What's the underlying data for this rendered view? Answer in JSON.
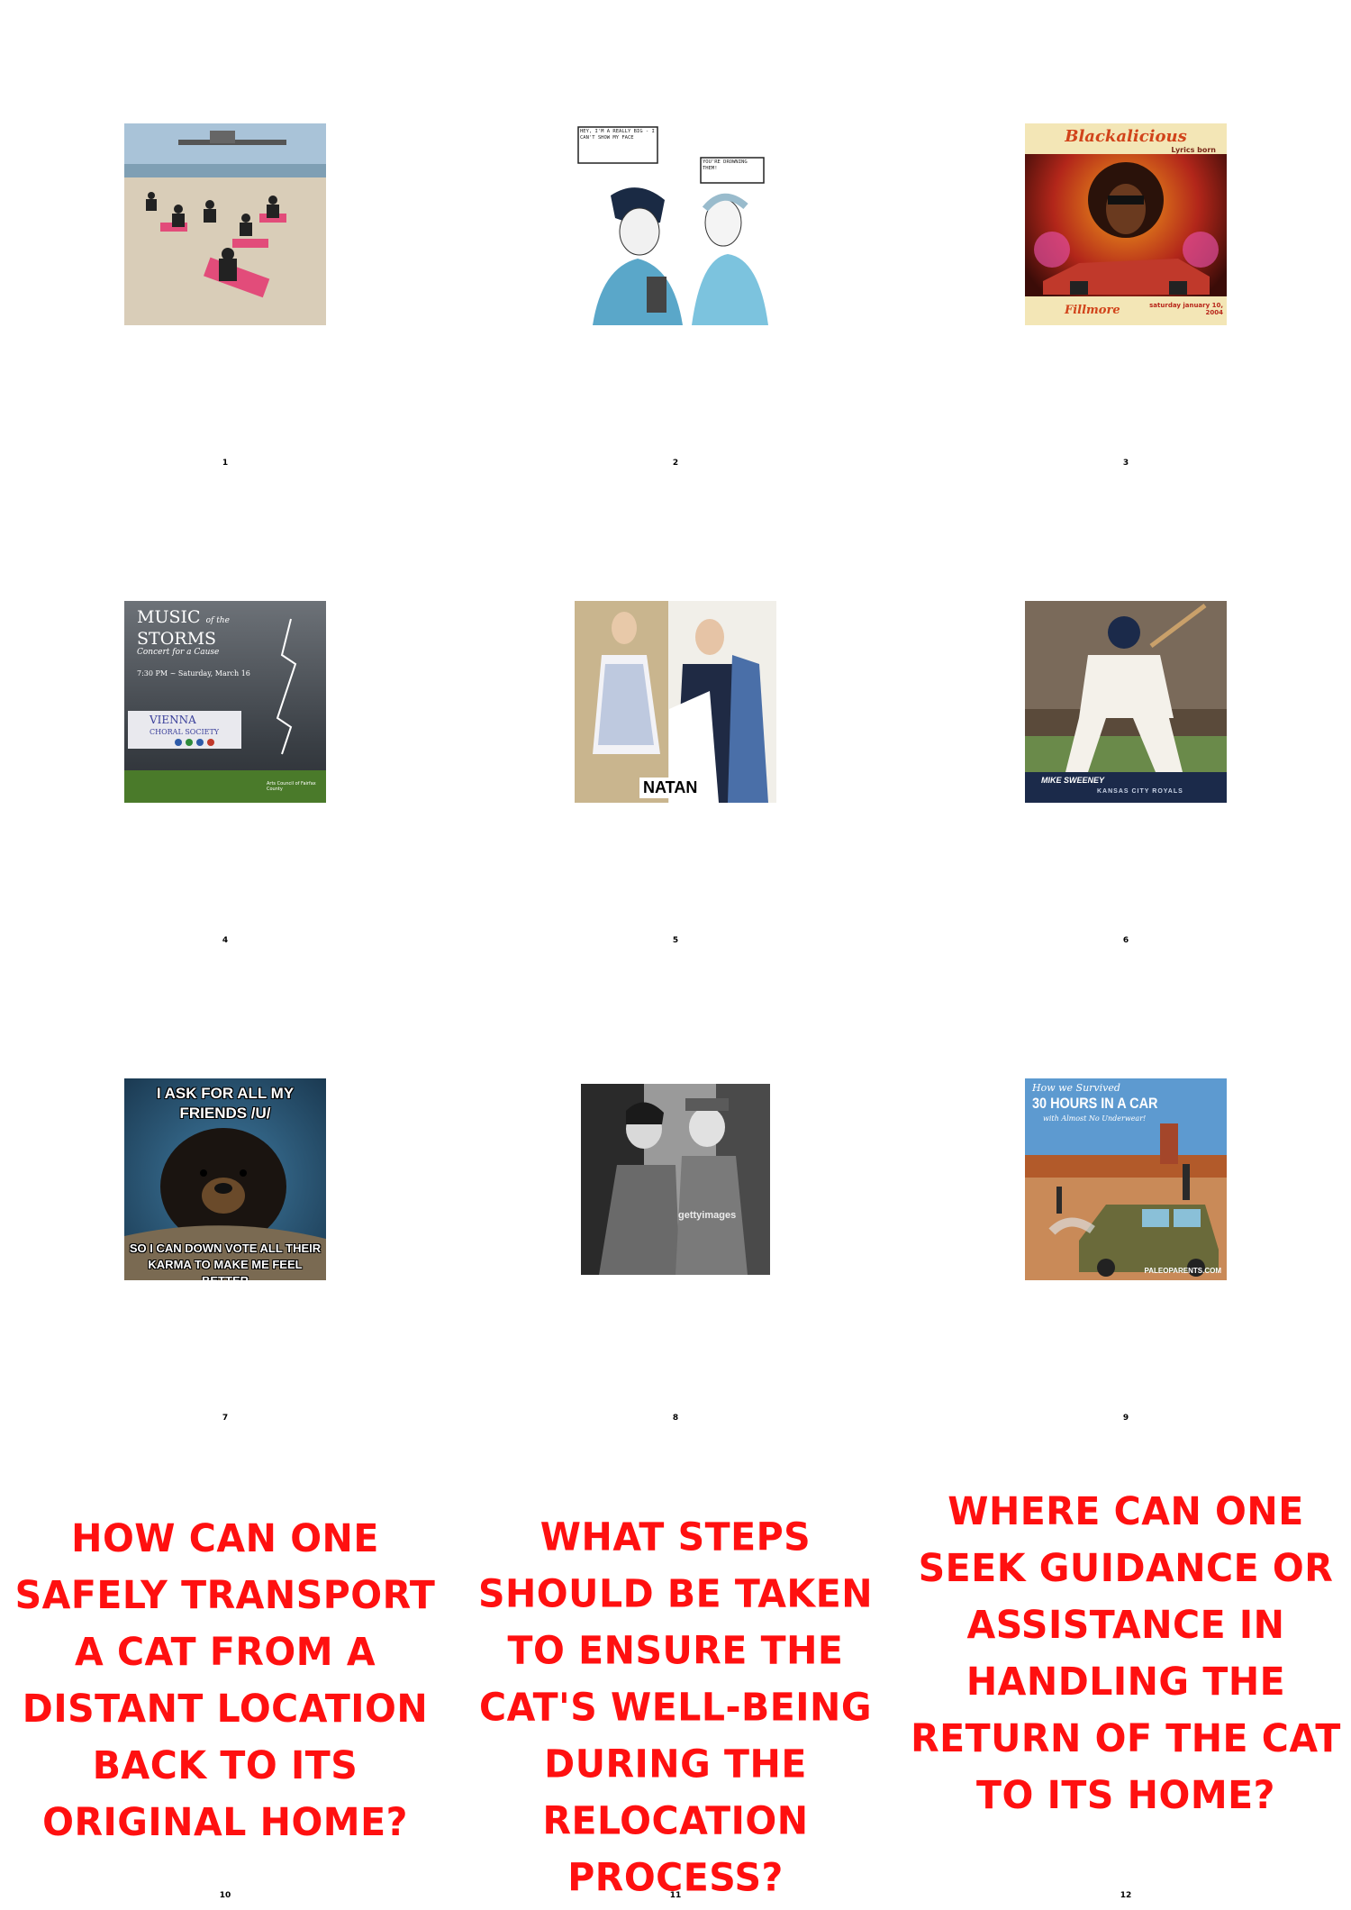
{
  "grid": {
    "cells": [
      {
        "number": "1"
      },
      {
        "number": "2",
        "speech": [
          "HEY, I'M A REALLY BIG - I CAN'T SHOW MY FACE",
          "YOU'RE DROWNING THEM!"
        ]
      },
      {
        "number": "3",
        "title": "Blackalicious",
        "subtitle": "Lyrics born",
        "date": "saturday january 10, 2004",
        "venue": "Fillmore"
      },
      {
        "number": "4",
        "title_line1": "MUSIC",
        "title_of": "of the",
        "title_line2": "STORMS",
        "subtitle": "Concert for a Cause",
        "date": "7:30 PM ~ Saturday, March 16",
        "org_line1": "VIENNA",
        "org_line2": "CHORAL SOCIETY",
        "sponsor": "Arts Council of Fairfax County"
      },
      {
        "number": "5",
        "brand": "NATAN"
      },
      {
        "number": "6",
        "player": "MIKE SWEENEY",
        "team": "KANSAS CITY ROYALS"
      },
      {
        "number": "7",
        "top_text": "I ASK FOR ALL MY FRIENDS /U/",
        "bottom_text": "SO I CAN DOWN VOTE ALL THEIR KARMA TO MAKE ME FEEL BETTER"
      },
      {
        "number": "8",
        "watermark": "gettyimages"
      },
      {
        "number": "9",
        "line1": "How we Survived",
        "line2": "30 HOURS IN A CAR",
        "line3": "with Almost No Underwear!",
        "credit": "PALEOPARENTS.COM"
      },
      {
        "number": "10",
        "question": "HOW CAN ONE SAFELY TRANSPORT A CAT FROM A DISTANT LOCATION BACK TO ITS ORIGINAL HOME?"
      },
      {
        "number": "11",
        "question": "WHAT STEPS SHOULD BE TAKEN TO ENSURE THE CAT'S WELL-BEING DURING THE RELOCATION PROCESS?"
      },
      {
        "number": "12",
        "question": "WHERE CAN ONE SEEK GUIDANCE OR ASSISTANCE IN HANDLING THE RETURN OF THE CAT TO ITS HOME?"
      }
    ]
  },
  "colors": {
    "question_red": "#ff1010",
    "background": "#ffffff"
  }
}
